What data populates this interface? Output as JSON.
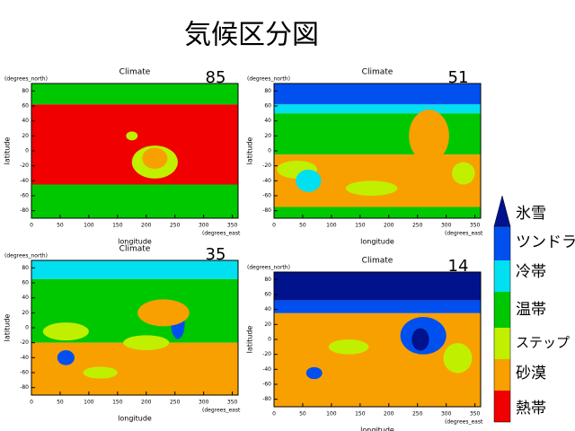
{
  "title": "気候区分図",
  "panels": [
    {
      "title": "Climate",
      "label": "85",
      "y_units": "(degrees_north)",
      "x_units": "(degrees_east",
      "y_axis_label": "latitude",
      "x_axis_label": "longitude",
      "yticks": [
        "80",
        "60",
        "40",
        "20",
        "0",
        "-20",
        "-40",
        "-60",
        "-80"
      ],
      "xticks": [
        "0",
        "50",
        "100",
        "150",
        "200",
        "250",
        "300",
        "350"
      ]
    },
    {
      "title": "Climate",
      "label": "51",
      "y_units": "(degrees_north)",
      "x_units": "(degrees_east",
      "y_axis_label": "latitude",
      "x_axis_label": "longitude",
      "yticks": [
        "80",
        "60",
        "40",
        "20",
        "0",
        "-20",
        "-40",
        "-60",
        "-80"
      ],
      "xticks": [
        "0",
        "50",
        "100",
        "150",
        "200",
        "250",
        "300",
        "350"
      ]
    },
    {
      "title": "Climate",
      "label": "35",
      "y_units": "(degrees_north)",
      "x_units": "(degrees_east",
      "y_axis_label": "latitude",
      "x_axis_label": "longitude",
      "yticks": [
        "80",
        "60",
        "40",
        "20",
        "0",
        "-20",
        "-40",
        "-60",
        "-80"
      ],
      "xticks": [
        "0",
        "50",
        "100",
        "150",
        "200",
        "250",
        "300",
        "350"
      ]
    },
    {
      "title": "Climate",
      "label": "14",
      "y_units": "(degrees_north)",
      "x_units": "(degrees_east",
      "y_axis_label": "latitude",
      "x_axis_label": "longitude",
      "yticks": [
        "80",
        "60",
        "40",
        "20",
        "0",
        "-20",
        "-40",
        "-60",
        "-80"
      ],
      "xticks": [
        "0",
        "50",
        "100",
        "150",
        "200",
        "250",
        "300",
        "350"
      ]
    }
  ],
  "legend": [
    {
      "label": "氷雪",
      "color": "#00128c"
    },
    {
      "label": "ツンドラ",
      "color": "#0050f0"
    },
    {
      "label": "冷帯",
      "color": "#00e0f0"
    },
    {
      "label": "温帯",
      "color": "#00c800"
    },
    {
      "label": "ステップ",
      "color": "#c0f000"
    },
    {
      "label": "砂漠",
      "color": "#f8a000"
    },
    {
      "label": "熱帯",
      "color": "#f00000"
    }
  ]
}
